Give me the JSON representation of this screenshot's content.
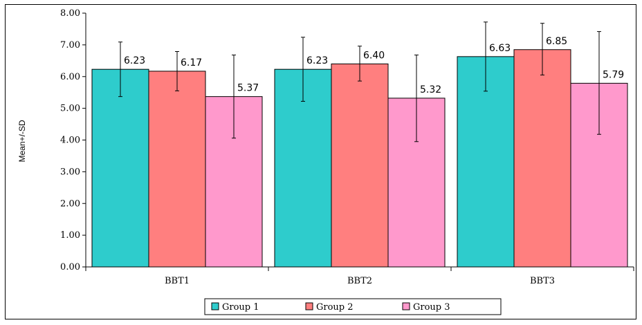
{
  "chart_data": {
    "type": "bar",
    "title": "",
    "xlabel": "",
    "ylabel": "Mean+/-SD",
    "categories": [
      "BBT1",
      "BBT2",
      "BBT3"
    ],
    "series": [
      {
        "name": "Group 1",
        "color": "#2ECCCC",
        "values": [
          6.23,
          6.23,
          6.63
        ],
        "labels": [
          "6.23",
          "6.23",
          "6.63"
        ],
        "err_low": [
          5.37,
          5.22,
          5.54
        ],
        "err_high": [
          7.09,
          7.24,
          7.72
        ]
      },
      {
        "name": "Group 2",
        "color": "#FF7F7F",
        "values": [
          6.17,
          6.4,
          6.85
        ],
        "labels": [
          "6.17",
          "6.40",
          "6.85"
        ],
        "err_low": [
          5.55,
          5.86,
          6.05
        ],
        "err_high": [
          6.79,
          6.96,
          7.68
        ]
      },
      {
        "name": "Group 3",
        "color": "#FF99CC",
        "values": [
          5.37,
          5.32,
          5.79
        ],
        "labels": [
          "5.37",
          "5.32",
          "5.79"
        ],
        "err_low": [
          4.06,
          3.95,
          4.18
        ],
        "err_high": [
          6.68,
          6.68,
          7.42
        ]
      }
    ],
    "ylim": [
      0,
      8
    ],
    "yticks": [
      "0.00",
      "1.00",
      "2.00",
      "3.00",
      "4.00",
      "5.00",
      "6.00",
      "7.00",
      "8.00"
    ],
    "grid": false,
    "legend_position": "bottom"
  }
}
